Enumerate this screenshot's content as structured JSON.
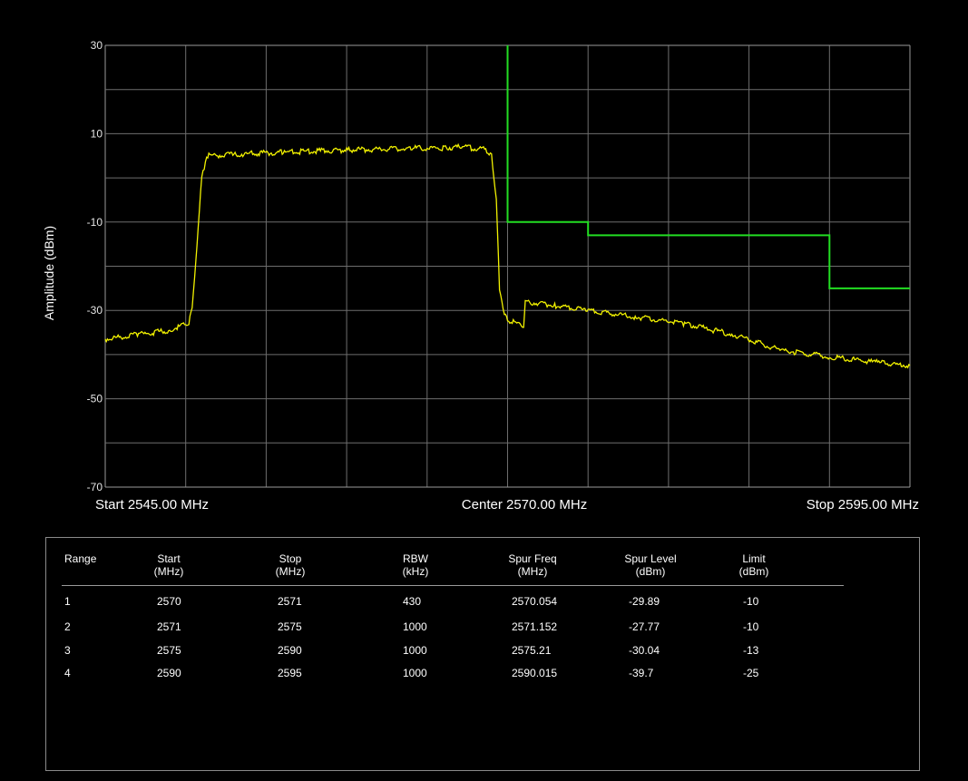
{
  "chart_data": {
    "type": "line",
    "title": "",
    "ylabel": "Amplitude (dBm)",
    "xlabel": "",
    "x_unit": "MHz",
    "xlim": [
      2545,
      2595
    ],
    "ylim": [
      -70,
      30
    ],
    "yticks": [
      30,
      10,
      -10,
      -30,
      -50,
      -70
    ],
    "grid": true,
    "freq_labels": {
      "start": "Start 2545.00 MHz",
      "center": "Center 2570.00 MHz",
      "stop": "Stop 2595.00 MHz"
    },
    "series": [
      {
        "color": "#f2f200",
        "x": [
          2545,
          2547,
          2549,
          2550.2,
          2550.4,
          2550.7,
          2551,
          2551.3,
          2553,
          2556,
          2560,
          2564,
          2566,
          2567,
          2568.5,
          2569,
          2569.3,
          2569.5,
          2569.8,
          2570,
          2570.5,
          2571,
          2571.1,
          2573,
          2575,
          2578,
          2581,
          2584,
          2587,
          2590,
          2593,
          2595
        ],
        "y": [
          -36.5,
          -35.5,
          -34.5,
          -33,
          -29.5,
          -15,
          0,
          5,
          5.3,
          5.8,
          6.3,
          6.7,
          6.8,
          7,
          6.5,
          5.5,
          -5,
          -25,
          -31,
          -32,
          -33,
          -33.5,
          -28,
          -29,
          -30,
          -31.5,
          -33,
          -35.5,
          -39,
          -40.5,
          -41.8,
          -42.5
        ]
      },
      {
        "color": "#22dd22",
        "x": [
          2570,
          2570,
          2575,
          2575,
          2590,
          2590,
          2595
        ],
        "y": [
          30,
          -10,
          -10,
          -13,
          -13,
          -25,
          -25
        ]
      }
    ]
  },
  "table": {
    "headers": [
      {
        "l1": "Range",
        "l2": ""
      },
      {
        "l1": "Start",
        "l2": "(MHz)"
      },
      {
        "l1": "Stop",
        "l2": "(MHz)"
      },
      {
        "l1": "RBW",
        "l2": "(kHz)"
      },
      {
        "l1": "Spur Freq",
        "l2": "(MHz)"
      },
      {
        "l1": "Spur Level",
        "l2": "(dBm)"
      },
      {
        "l1": "Limit",
        "l2": "(dBm)"
      }
    ],
    "rows": [
      [
        "1",
        "2570",
        "2571",
        "430",
        "2570.054",
        "-29.89",
        "-10"
      ],
      [
        "2",
        "2571",
        "2575",
        "1000",
        "2571.152",
        "-27.77",
        "-10"
      ],
      [
        "3",
        "2575",
        "2590",
        "1000",
        "2575.21",
        "-30.04",
        "-13"
      ],
      [
        "4",
        "2590",
        "2595",
        "1000",
        "2590.015",
        "-39.7",
        "-25"
      ]
    ]
  }
}
